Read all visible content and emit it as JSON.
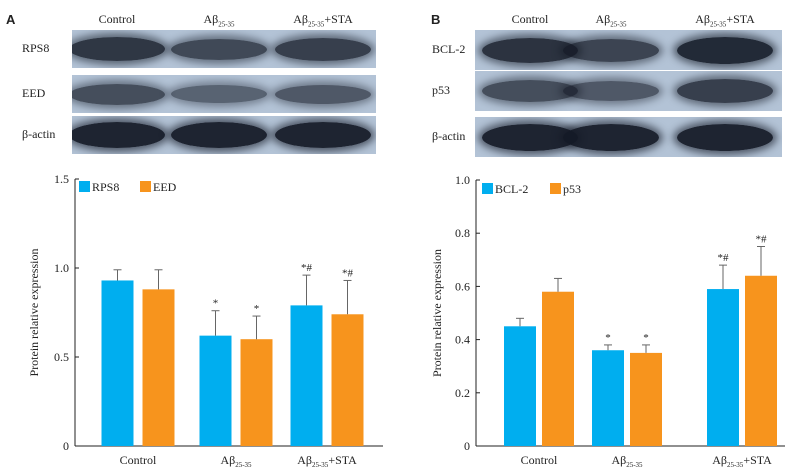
{
  "panel_a": {
    "letter": "A",
    "lanes": [
      {
        "main": "Control",
        "sub": "",
        "tail": ""
      },
      {
        "main": "Aβ",
        "sub": "25-35",
        "tail": ""
      },
      {
        "main": "Aβ",
        "sub": "25-35",
        "tail": "+STA"
      }
    ],
    "blots": [
      {
        "label": "RPS8",
        "intensity": [
          0.78,
          0.6,
          0.7
        ]
      },
      {
        "label": "EED",
        "intensity": [
          0.55,
          0.35,
          0.45
        ]
      },
      {
        "label": "β-actin",
        "intensity": [
          0.95,
          0.95,
          0.95
        ]
      }
    ]
  },
  "panel_b": {
    "letter": "B",
    "lanes": [
      {
        "main": "Control",
        "sub": "",
        "tail": ""
      },
      {
        "main": "Aβ",
        "sub": "25-35",
        "tail": ""
      },
      {
        "main": "Aβ",
        "sub": "25-35",
        "tail": "+STA"
      }
    ],
    "blots": [
      {
        "label": "BCL-2",
        "intensity": [
          0.8,
          0.65,
          0.9
        ]
      },
      {
        "label": "p53",
        "intensity": [
          0.55,
          0.45,
          0.7
        ]
      },
      {
        "label": "β-actin",
        "intensity": [
          0.95,
          0.95,
          0.95
        ]
      }
    ]
  },
  "colors": {
    "blue": "#00aeef",
    "orange": "#f7941d",
    "blot_bg": "#b3c3d6",
    "band": "#1a1f2a"
  },
  "chart_data": [
    {
      "type": "bar",
      "categories": [
        {
          "main": "Control",
          "sub": "",
          "tail": ""
        },
        {
          "main": "Aβ",
          "sub": "25-35",
          "tail": ""
        },
        {
          "main": "Aβ",
          "sub": "25-35",
          "tail": "+STA"
        }
      ],
      "series": [
        {
          "name": "RPS8",
          "color": "#00aeef",
          "values": [
            0.93,
            0.62,
            0.79
          ],
          "errors": [
            0.06,
            0.14,
            0.17
          ],
          "annotations": [
            "",
            "*",
            "*#"
          ]
        },
        {
          "name": "EED",
          "color": "#f7941d",
          "values": [
            0.88,
            0.6,
            0.74
          ],
          "errors": [
            0.11,
            0.13,
            0.19
          ],
          "annotations": [
            "",
            "*",
            "*#"
          ]
        }
      ],
      "ylabel": "Protein relative expression",
      "ylim": [
        0,
        1.5
      ],
      "yticks": [
        "0",
        "0.5",
        "1.0",
        "1.5"
      ],
      "ytick_values": [
        0,
        0.5,
        1.0,
        1.5
      ],
      "legend": "top-left",
      "grid": false
    },
    {
      "type": "bar",
      "categories": [
        {
          "main": "Control",
          "sub": "",
          "tail": ""
        },
        {
          "main": "Aβ",
          "sub": "25-35",
          "tail": ""
        },
        {
          "main": "Aβ",
          "sub": "25-35",
          "tail": "+STA"
        }
      ],
      "series": [
        {
          "name": "BCL-2",
          "color": "#00aeef",
          "values": [
            0.45,
            0.36,
            0.59
          ],
          "errors": [
            0.03,
            0.02,
            0.09
          ],
          "annotations": [
            "",
            "*",
            "*#"
          ]
        },
        {
          "name": "p53",
          "color": "#f7941d",
          "values": [
            0.58,
            0.35,
            0.64
          ],
          "errors": [
            0.05,
            0.03,
            0.11
          ],
          "annotations": [
            "",
            "*",
            "*#"
          ]
        }
      ],
      "ylabel": "Protein relative expression",
      "ylim": [
        0,
        1.0
      ],
      "yticks": [
        "0",
        "0.2",
        "0.4",
        "0.6",
        "0.8",
        "1.0"
      ],
      "ytick_values": [
        0,
        0.2,
        0.4,
        0.6,
        0.8,
        1.0
      ],
      "legend": "top-left",
      "grid": false
    }
  ]
}
